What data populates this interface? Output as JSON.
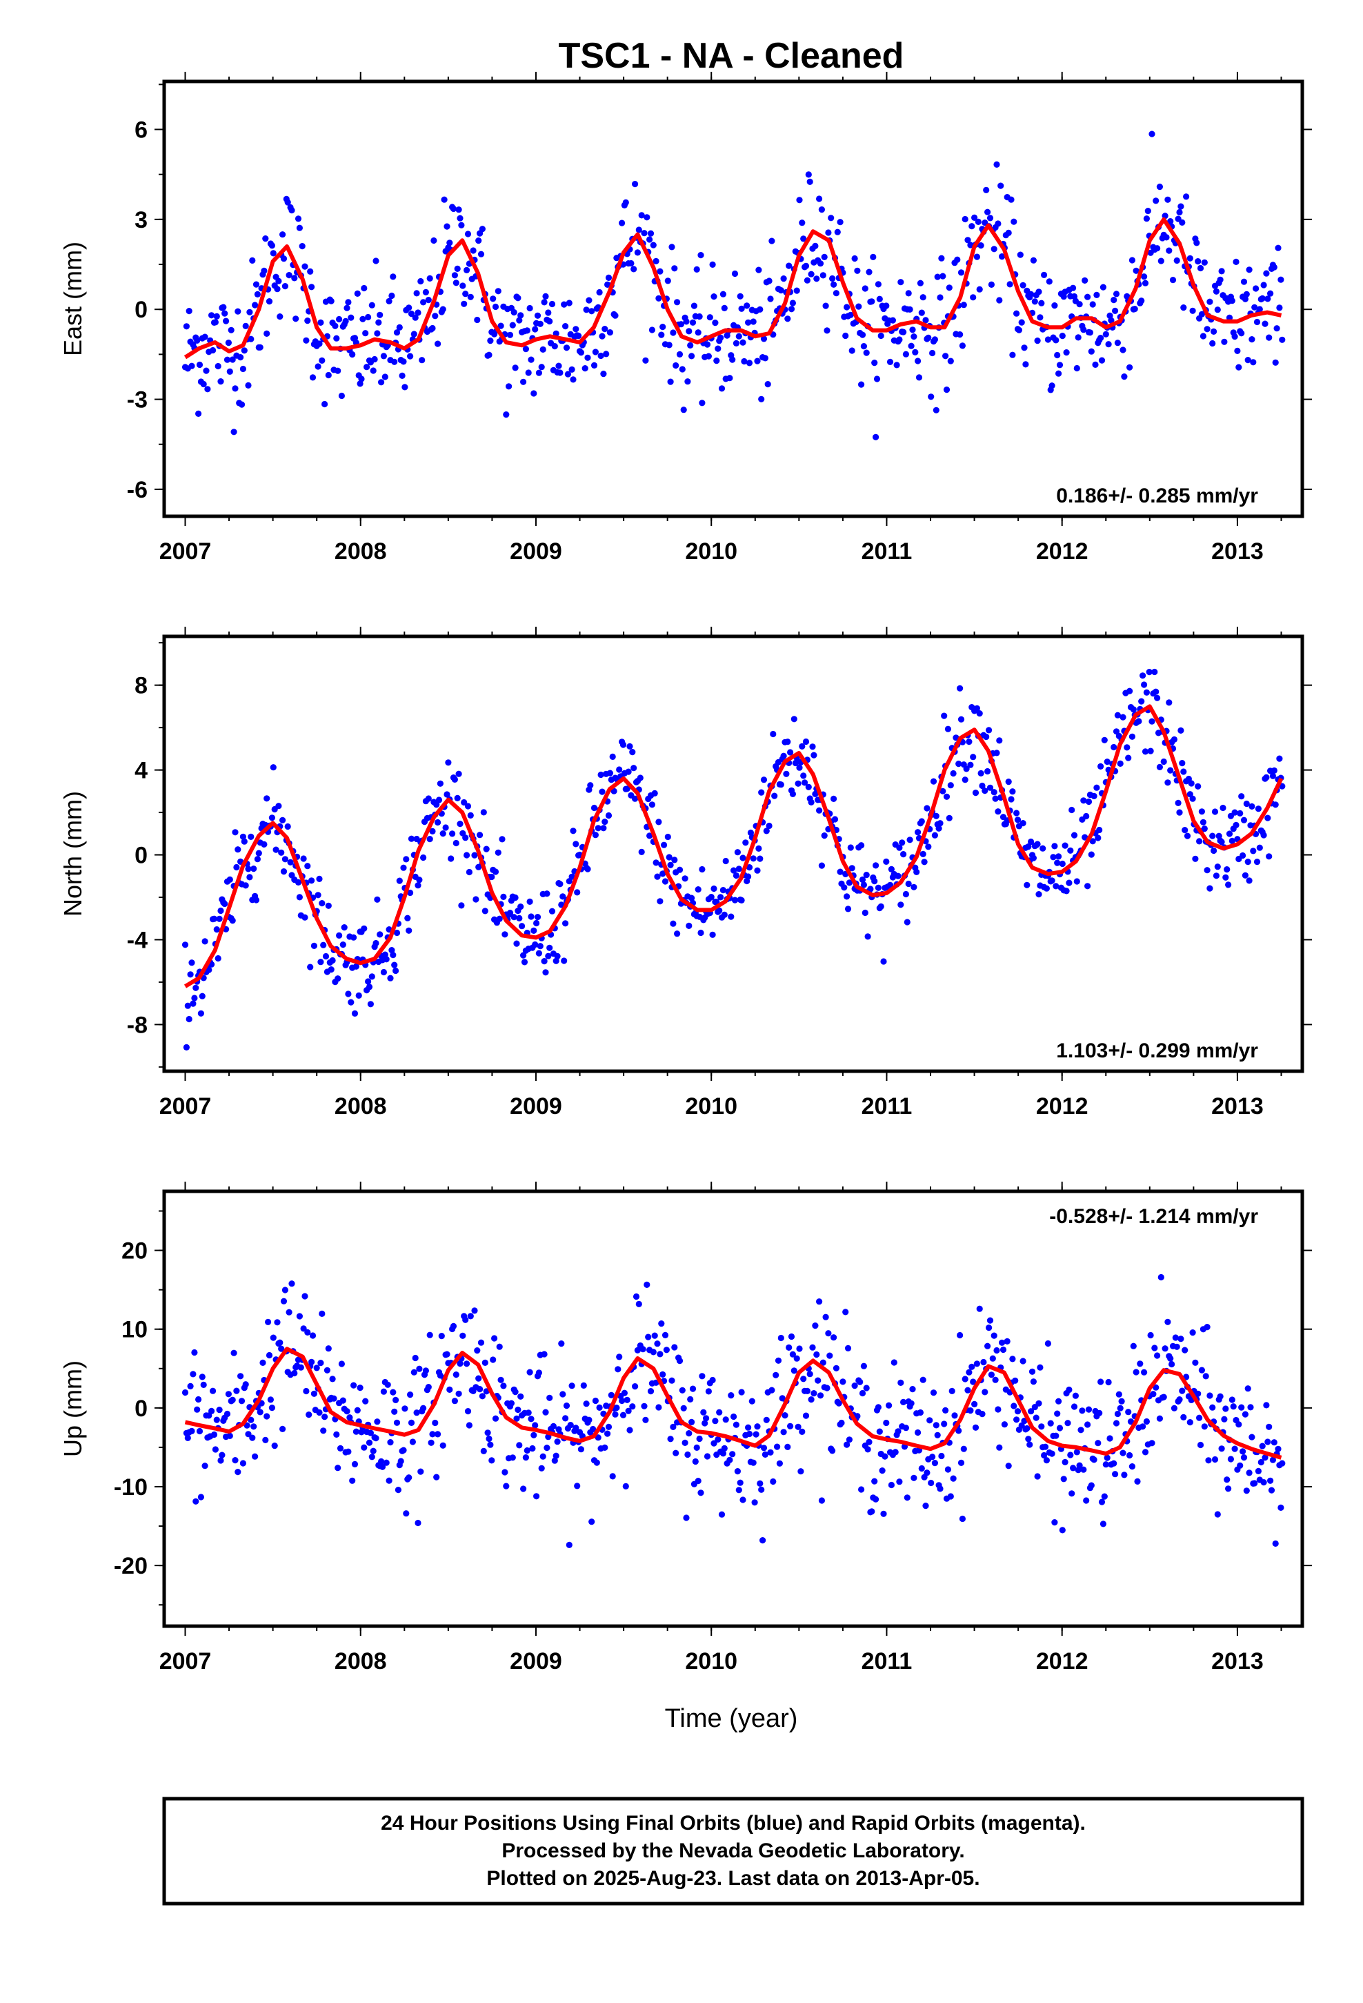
{
  "title": "TSC1  - NA - Cleaned",
  "xlabel": "Time (year)",
  "footer": {
    "line1": "24 Hour Positions Using Final Orbits (blue) and Rapid Orbits (magenta).",
    "line2": "Processed by the Nevada Geodetic Laboratory.",
    "line3": "Plotted on 2025-Aug-23. Last data on 2013-Apr-05."
  },
  "colors": {
    "data": "#0000ff",
    "model": "#ff0000",
    "frame": "#000000"
  },
  "chart_data": [
    {
      "type": "scatter",
      "ylabel": "East (mm)",
      "rate_label": "0.186+/- 0.285 mm/yr",
      "rate_position": "bottom-right",
      "xlim": [
        2006.88,
        2013.37
      ],
      "ylim": [
        -6.9,
        7.6
      ],
      "yticks": [
        -6,
        -3,
        0,
        3,
        6
      ],
      "xticks": [
        2007,
        2008,
        2009,
        2010,
        2011,
        2012,
        2013
      ],
      "grid": false,
      "series": [
        {
          "values_description_note": null,
          "x": [
            2007.0,
            2007.08,
            2007.17,
            2007.25,
            2007.33,
            2007.42,
            2007.5,
            2007.58,
            2007.67,
            2007.75,
            2007.83,
            2007.92,
            2008.0,
            2008.08,
            2008.17,
            2008.25,
            2008.33,
            2008.42,
            2008.5,
            2008.58,
            2008.67,
            2008.75,
            2008.83,
            2008.92,
            2009.0,
            2009.08,
            2009.17,
            2009.25,
            2009.33,
            2009.42,
            2009.5,
            2009.58,
            2009.67,
            2009.75,
            2009.83,
            2009.92,
            2010.0,
            2010.08,
            2010.17,
            2010.25,
            2010.33,
            2010.42,
            2010.5,
            2010.58,
            2010.67,
            2010.75,
            2010.83,
            2010.92,
            2011.0,
            2011.08,
            2011.17,
            2011.25,
            2011.33,
            2011.42,
            2011.5,
            2011.58,
            2011.67,
            2011.75,
            2011.83,
            2011.92,
            2012.0,
            2012.08,
            2012.17,
            2012.25,
            2012.33,
            2012.42,
            2012.5,
            2012.58,
            2012.67,
            2012.75,
            2012.83,
            2012.92,
            2013.0,
            2013.08,
            2013.17,
            2013.25
          ],
          "y": [
            -1.6,
            -1.3,
            -1.1,
            -1.4,
            -1.2,
            0.0,
            1.6,
            2.1,
            1.0,
            -0.6,
            -1.3,
            -1.3,
            -1.2,
            -1.0,
            -1.1,
            -1.3,
            -1.0,
            0.3,
            1.8,
            2.3,
            1.2,
            -0.4,
            -1.1,
            -1.2,
            -1.0,
            -0.9,
            -1.0,
            -1.1,
            -0.6,
            0.6,
            1.9,
            2.5,
            1.4,
            0.0,
            -0.9,
            -1.1,
            -0.9,
            -0.7,
            -0.7,
            -0.9,
            -0.8,
            0.2,
            1.8,
            2.6,
            2.3,
            0.9,
            -0.3,
            -0.7,
            -0.7,
            -0.5,
            -0.4,
            -0.6,
            -0.6,
            0.4,
            2.1,
            2.8,
            2.0,
            0.6,
            -0.4,
            -0.6,
            -0.6,
            -0.3,
            -0.3,
            -0.6,
            -0.4,
            0.7,
            2.3,
            3.0,
            2.2,
            0.8,
            -0.2,
            -0.4,
            -0.4,
            -0.2,
            -0.1,
            -0.2
          ],
          "name": ""
        }
      ]
    },
    {
      "type": "scatter",
      "ylabel": "North (mm)",
      "rate_label": "1.103+/- 0.299 mm/yr",
      "rate_position": "bottom-right",
      "xlim": [
        2006.88,
        2013.37
      ],
      "ylim": [
        -10.2,
        10.3
      ],
      "yticks": [
        -8,
        -4,
        0,
        4,
        8
      ],
      "xticks": [
        2007,
        2008,
        2009,
        2010,
        2011,
        2012,
        2013
      ],
      "grid": false,
      "series": [
        {
          "x": [
            2007.0,
            2007.08,
            2007.17,
            2007.25,
            2007.33,
            2007.42,
            2007.5,
            2007.58,
            2007.67,
            2007.75,
            2007.83,
            2007.92,
            2008.0,
            2008.08,
            2008.17,
            2008.25,
            2008.33,
            2008.42,
            2008.5,
            2008.58,
            2008.67,
            2008.75,
            2008.83,
            2008.92,
            2009.0,
            2009.08,
            2009.17,
            2009.25,
            2009.33,
            2009.42,
            2009.5,
            2009.58,
            2009.67,
            2009.75,
            2009.83,
            2009.92,
            2010.0,
            2010.08,
            2010.17,
            2010.25,
            2010.33,
            2010.42,
            2010.5,
            2010.58,
            2010.67,
            2010.75,
            2010.83,
            2010.92,
            2011.0,
            2011.08,
            2011.17,
            2011.25,
            2011.33,
            2011.42,
            2011.5,
            2011.58,
            2011.67,
            2011.75,
            2011.83,
            2011.92,
            2012.0,
            2012.08,
            2012.17,
            2012.25,
            2012.33,
            2012.42,
            2012.5,
            2012.58,
            2012.67,
            2012.75,
            2012.83,
            2012.92,
            2013.0,
            2013.08,
            2013.17,
            2013.25
          ],
          "y": [
            -6.2,
            -5.8,
            -4.5,
            -2.5,
            -0.5,
            0.9,
            1.5,
            0.8,
            -1.2,
            -3.0,
            -4.3,
            -4.9,
            -5.1,
            -4.9,
            -3.9,
            -2.0,
            0.2,
            1.8,
            2.6,
            2.0,
            0.2,
            -1.8,
            -3.1,
            -3.8,
            -3.9,
            -3.6,
            -2.4,
            -0.6,
            1.6,
            3.1,
            3.6,
            2.9,
            1.0,
            -0.9,
            -2.1,
            -2.6,
            -2.6,
            -2.2,
            -1.1,
            0.8,
            3.0,
            4.4,
            4.8,
            3.8,
            1.7,
            -0.3,
            -1.5,
            -1.9,
            -1.8,
            -1.3,
            -0.1,
            1.8,
            4.0,
            5.5,
            5.9,
            4.9,
            2.7,
            0.5,
            -0.6,
            -0.9,
            -0.8,
            -0.3,
            1.0,
            3.0,
            5.2,
            6.6,
            7.0,
            5.8,
            3.6,
            1.6,
            0.6,
            0.3,
            0.5,
            1.0,
            2.2,
            3.6
          ],
          "name": ""
        }
      ]
    },
    {
      "type": "scatter",
      "ylabel": "Up (mm)",
      "rate_label": "-0.528+/- 1.214 mm/yr",
      "rate_position": "top-right",
      "xlim": [
        2006.88,
        2013.37
      ],
      "ylim": [
        -27.7,
        27.5
      ],
      "yticks": [
        -20,
        -10,
        0,
        10,
        20
      ],
      "xticks": [
        2007,
        2008,
        2009,
        2010,
        2011,
        2012,
        2013
      ],
      "grid": false,
      "series": [
        {
          "x": [
            2007.0,
            2007.08,
            2007.17,
            2007.25,
            2007.33,
            2007.42,
            2007.5,
            2007.58,
            2007.67,
            2007.75,
            2007.83,
            2007.92,
            2008.0,
            2008.08,
            2008.17,
            2008.25,
            2008.33,
            2008.42,
            2008.5,
            2008.58,
            2008.67,
            2008.75,
            2008.83,
            2008.92,
            2009.0,
            2009.08,
            2009.17,
            2009.25,
            2009.33,
            2009.42,
            2009.5,
            2009.58,
            2009.67,
            2009.75,
            2009.83,
            2009.92,
            2010.0,
            2010.08,
            2010.17,
            2010.25,
            2010.33,
            2010.42,
            2010.5,
            2010.58,
            2010.67,
            2010.75,
            2010.83,
            2010.92,
            2011.0,
            2011.08,
            2011.17,
            2011.25,
            2011.33,
            2011.42,
            2011.5,
            2011.58,
            2011.67,
            2011.75,
            2011.83,
            2011.92,
            2012.0,
            2012.08,
            2012.17,
            2012.25,
            2012.33,
            2012.42,
            2012.5,
            2012.58,
            2012.67,
            2012.75,
            2012.83,
            2012.92,
            2013.0,
            2013.08,
            2013.17,
            2013.25
          ],
          "y": [
            -1.8,
            -2.2,
            -2.6,
            -3.0,
            -2.0,
            1.0,
            5.0,
            7.5,
            6.5,
            3.0,
            -0.5,
            -1.8,
            -2.2,
            -2.6,
            -3.0,
            -3.4,
            -2.8,
            0.5,
            4.8,
            7.0,
            5.5,
            1.8,
            -1.2,
            -2.5,
            -2.8,
            -3.2,
            -3.8,
            -4.2,
            -3.6,
            -0.5,
            3.8,
            6.3,
            5.0,
            1.5,
            -1.8,
            -3.0,
            -3.2,
            -3.6,
            -4.2,
            -4.8,
            -3.5,
            0.5,
            4.5,
            6.0,
            4.5,
            1.0,
            -2.0,
            -3.6,
            -4.0,
            -4.3,
            -4.8,
            -5.2,
            -4.5,
            -1.5,
            2.5,
            5.3,
            4.5,
            1.0,
            -2.5,
            -4.2,
            -4.8,
            -5.0,
            -5.4,
            -5.8,
            -5.0,
            -1.8,
            2.5,
            4.8,
            4.3,
            1.5,
            -1.5,
            -3.5,
            -4.5,
            -5.2,
            -5.8,
            -6.3
          ],
          "name": ""
        }
      ]
    }
  ]
}
